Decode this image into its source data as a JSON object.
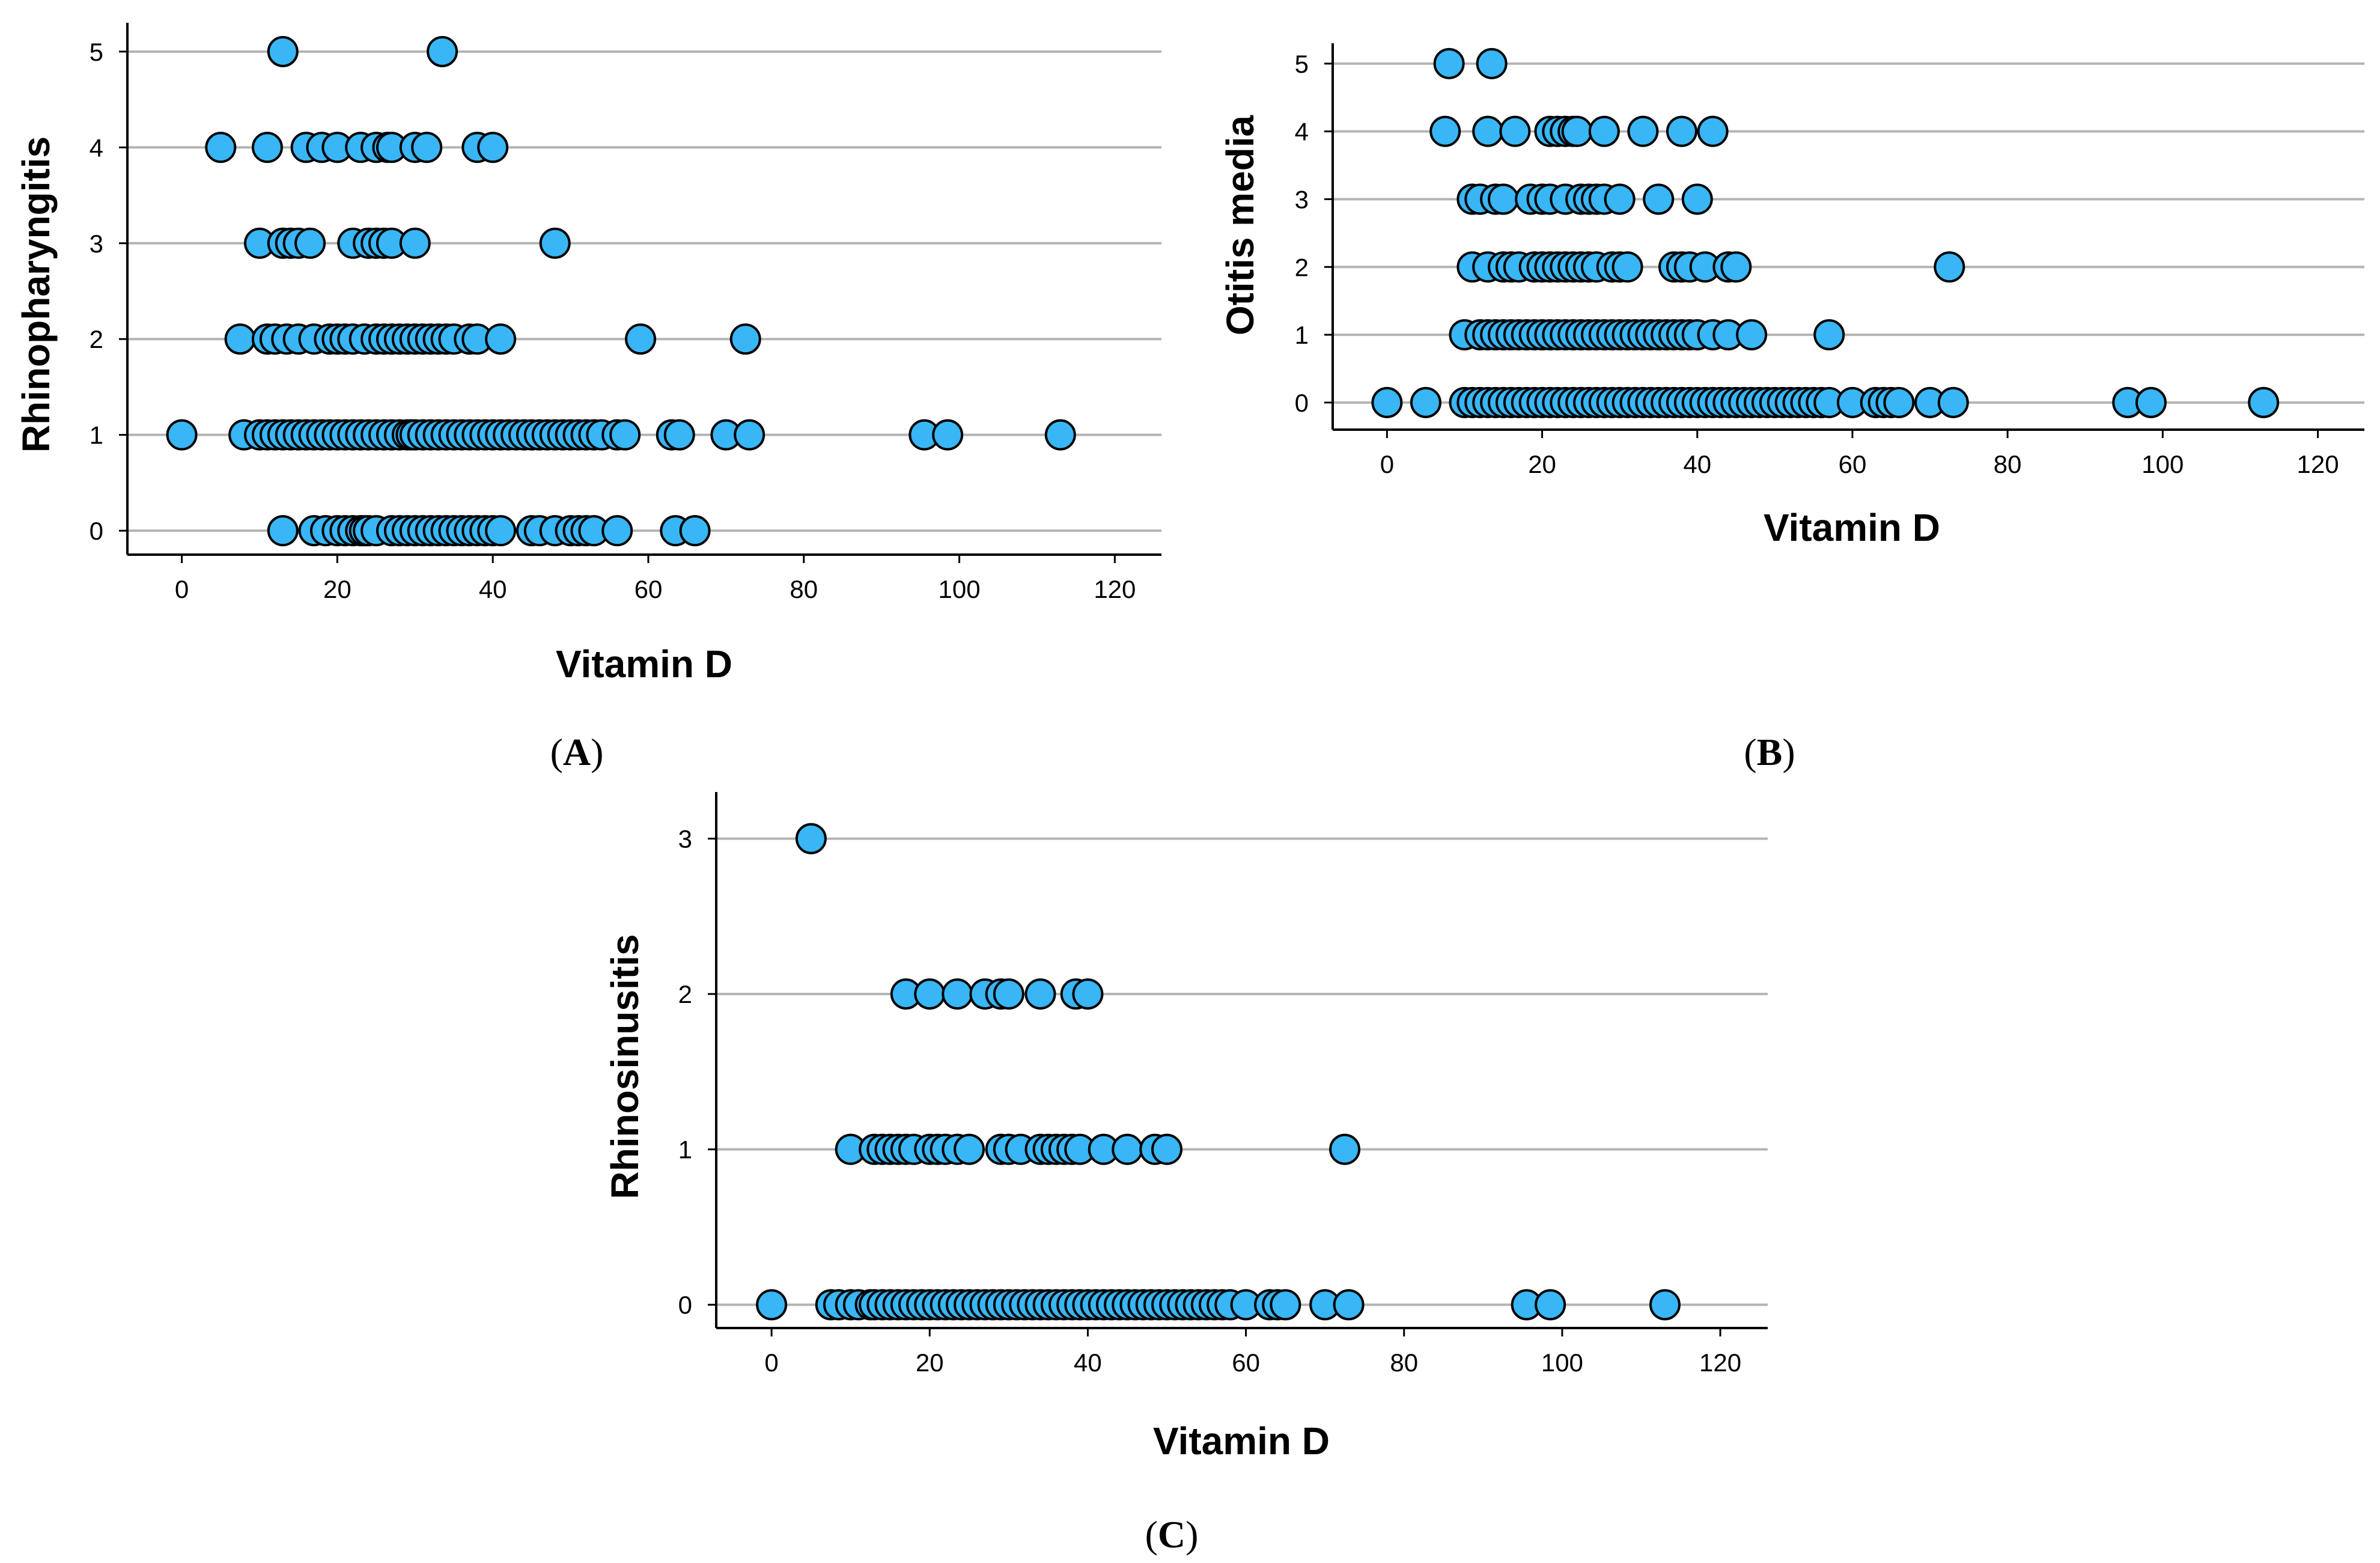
{
  "colors": {
    "marker": "#38b6f5",
    "marker_edge": "#000000",
    "grid": "#b4b4b4"
  },
  "panel_labels": [
    {
      "open": "(",
      "letter": "A",
      "close": ")"
    },
    {
      "open": "(",
      "letter": "B",
      "close": ")"
    },
    {
      "open": "(",
      "letter": "C",
      "close": ")"
    }
  ],
  "chart_data": [
    {
      "type": "scatter",
      "panel": "A",
      "xlabel": "Vitamin D",
      "ylabel": "Rhinopharyngitis",
      "xlim": [
        -7,
        126
      ],
      "ylim": [
        -0.25,
        5.3
      ],
      "xticks": [
        0,
        20,
        40,
        60,
        80,
        100,
        120
      ],
      "yticks": [
        0,
        1,
        2,
        3,
        4,
        5
      ],
      "grid": "horizontal",
      "rows": [
        {
          "y": 5,
          "x": [
            13,
            33.5
          ]
        },
        {
          "y": 4,
          "x": [
            5,
            11,
            16,
            18,
            20,
            23,
            25,
            26.5,
            27,
            30,
            31.5,
            38,
            40
          ]
        },
        {
          "y": 3,
          "x": [
            10,
            13,
            14,
            15,
            16.5,
            22,
            24,
            25,
            26,
            27,
            30,
            48
          ]
        },
        {
          "y": 2,
          "x": [
            7.5,
            11,
            12,
            13.5,
            15,
            17,
            19,
            20,
            21,
            22,
            23.5,
            25,
            26,
            27,
            28,
            29,
            30,
            31,
            32,
            33,
            34,
            35,
            37,
            38,
            41,
            59,
            72.5
          ]
        },
        {
          "y": 1,
          "x": [
            0,
            8,
            10,
            11,
            12,
            13,
            14,
            15,
            16,
            17,
            18,
            19,
            20,
            21,
            22,
            23,
            24,
            25,
            26,
            27,
            28,
            29,
            29.5,
            30,
            31,
            32,
            33,
            34,
            35,
            36,
            37,
            38,
            39,
            40,
            41,
            42,
            43,
            44,
            45,
            46,
            47,
            48,
            49,
            50,
            51,
            52,
            53,
            54,
            56,
            57,
            63,
            64,
            70,
            73,
            95.5,
            98.5,
            113
          ]
        },
        {
          "y": 0,
          "x": [
            13,
            17,
            18.5,
            20,
            21,
            22,
            23,
            23.5,
            24,
            25,
            27,
            28,
            29,
            30,
            31,
            32,
            33,
            34,
            35,
            36,
            37,
            38,
            39,
            40,
            41,
            45,
            46,
            48,
            50,
            51,
            52,
            53,
            56,
            63.5,
            66
          ]
        }
      ]
    },
    {
      "type": "scatter",
      "panel": "B",
      "xlabel": "Vitamin D",
      "ylabel": "Otitis media",
      "xlim": [
        -7,
        126
      ],
      "ylim": [
        -0.4,
        5.3
      ],
      "xticks": [
        0,
        20,
        40,
        60,
        80,
        100,
        120
      ],
      "yticks": [
        0,
        1,
        2,
        3,
        4,
        5
      ],
      "grid": "horizontal",
      "rows": [
        {
          "y": 5,
          "x": [
            8,
            13.5
          ]
        },
        {
          "y": 4,
          "x": [
            7.5,
            13,
            16.5,
            21,
            22,
            23,
            24,
            24.5,
            28,
            33,
            38,
            42
          ]
        },
        {
          "y": 3,
          "x": [
            11,
            12,
            14,
            15,
            18.5,
            20,
            21,
            23,
            25,
            26,
            27,
            28,
            30,
            35,
            40
          ]
        },
        {
          "y": 2,
          "x": [
            11,
            13,
            15,
            16,
            17,
            19,
            20,
            21,
            22,
            23,
            24,
            25,
            26,
            27,
            29,
            30,
            31,
            37,
            38,
            39,
            41,
            44,
            45,
            72.5
          ]
        },
        {
          "y": 1,
          "x": [
            10,
            12,
            13,
            14,
            15,
            16,
            17,
            18,
            19,
            20,
            21,
            22,
            23,
            24,
            25,
            26,
            27,
            28,
            29,
            30,
            31,
            32,
            33,
            34,
            35,
            36,
            37,
            38,
            39,
            40,
            42,
            44,
            47,
            57
          ]
        },
        {
          "y": 0,
          "x": [
            0,
            5,
            10,
            11,
            12,
            13,
            14,
            15,
            16,
            17,
            18,
            19,
            20,
            21,
            22,
            23,
            24,
            25,
            26,
            27,
            28,
            29,
            30,
            31,
            32,
            33,
            34,
            35,
            36,
            37,
            38,
            39,
            40,
            41,
            42,
            43,
            44,
            45,
            46,
            47,
            48,
            49,
            50,
            51,
            52,
            53,
            54,
            55,
            56,
            57,
            60,
            63,
            64,
            65,
            66,
            70,
            73,
            95.5,
            98.5,
            113
          ]
        }
      ]
    },
    {
      "type": "scatter",
      "panel": "C",
      "xlabel": "Vitamin D",
      "ylabel": "Rhinosinusitis",
      "xlim": [
        -7,
        126
      ],
      "ylim": [
        -0.15,
        3.3
      ],
      "xticks": [
        0,
        20,
        40,
        60,
        80,
        100,
        120
      ],
      "yticks": [
        0,
        1,
        2,
        3
      ],
      "grid": "horizontal",
      "rows": [
        {
          "y": 3,
          "x": [
            5
          ]
        },
        {
          "y": 2,
          "x": [
            17,
            20,
            23.5,
            27,
            29,
            30,
            34,
            38.5,
            40
          ]
        },
        {
          "y": 1,
          "x": [
            10,
            13,
            14,
            15,
            16,
            17,
            18,
            20,
            21,
            22,
            23.5,
            25,
            29,
            30,
            31.5,
            34,
            35,
            36,
            37,
            38,
            39,
            42,
            45,
            48.5,
            50,
            72.5
          ]
        },
        {
          "y": 0,
          "x": [
            0,
            7.5,
            8.5,
            10,
            11,
            12.5,
            13,
            14,
            15,
            16,
            17,
            18,
            19,
            20,
            21,
            22,
            23,
            24,
            25,
            26,
            27,
            28,
            29,
            30,
            31,
            32,
            33,
            34,
            35,
            36,
            37,
            38,
            39,
            40,
            41,
            42,
            43,
            44,
            45,
            46,
            47,
            48,
            49,
            50,
            51,
            52,
            53,
            54,
            55,
            56,
            57,
            58,
            60,
            63,
            64,
            65,
            70,
            73,
            95.5,
            98.5,
            113
          ]
        }
      ]
    }
  ]
}
